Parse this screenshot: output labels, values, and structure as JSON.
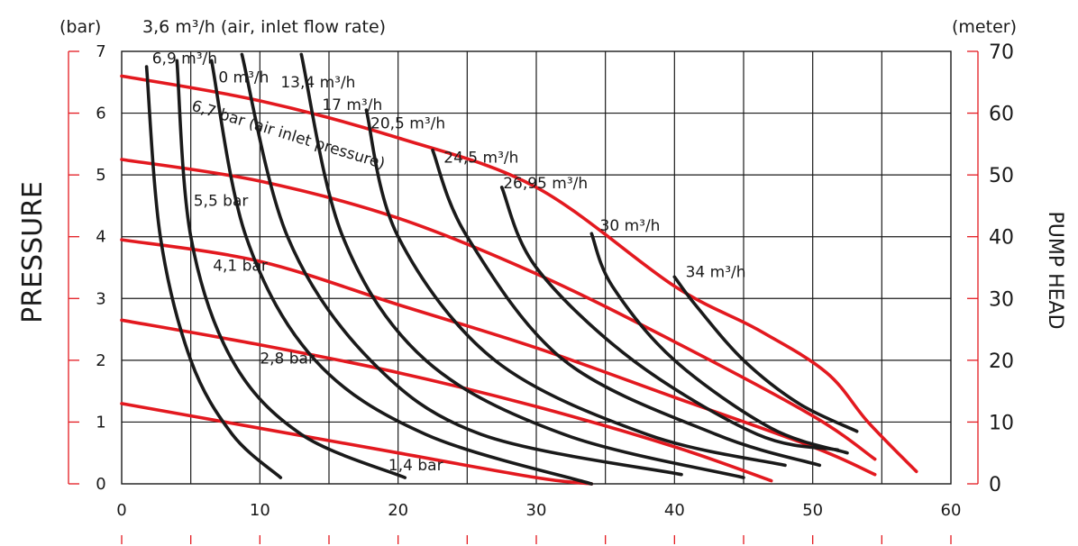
{
  "chart_data": {
    "type": "line",
    "left_axis": {
      "title": "PRESSURE",
      "unit": "(bar)",
      "range": [
        0,
        7
      ],
      "ticks": [
        "0",
        "1",
        "2",
        "3",
        "4",
        "5",
        "6",
        "7"
      ]
    },
    "right_axis": {
      "title": "PUMP HEAD",
      "unit": "(meter)",
      "range": [
        0,
        70
      ],
      "ticks": [
        "0",
        "10",
        "20",
        "30",
        "40",
        "50",
        "60",
        "70"
      ]
    },
    "x_axis": {
      "range": [
        0,
        60
      ],
      "ticks": [
        "0",
        "10",
        "20",
        "30",
        "40",
        "50",
        "60"
      ]
    },
    "grid": true,
    "top_annotation": "3,6 m³/h (air, inlet flow rate)",
    "colors": {
      "pressure_curves": "#e3191f",
      "air_flow_curves": "#1a1a1a",
      "grid": "#1a1a1a"
    },
    "pressure_series": [
      {
        "name": "6,7 bar (air inlet pressure)",
        "label_angle": 17,
        "x": [
          0,
          10,
          20,
          30,
          40,
          46,
          51,
          54,
          57.5
        ],
        "y": [
          6.6,
          6.2,
          5.6,
          4.8,
          3.2,
          2.5,
          1.8,
          1.0,
          0.2
        ]
      },
      {
        "name": "5,5 bar",
        "x": [
          0,
          10,
          20,
          30,
          40,
          50,
          54.5
        ],
        "y": [
          5.25,
          4.9,
          4.3,
          3.4,
          2.3,
          1.1,
          0.4
        ]
      },
      {
        "name": "4,1 bar",
        "x": [
          0,
          10,
          20,
          30,
          40,
          50,
          54.5
        ],
        "y": [
          3.95,
          3.6,
          2.9,
          2.2,
          1.4,
          0.6,
          0.15
        ]
      },
      {
        "name": "2,8 bar",
        "x": [
          0,
          10,
          20,
          30,
          40,
          47
        ],
        "y": [
          2.65,
          2.25,
          1.8,
          1.25,
          0.6,
          0.05
        ]
      },
      {
        "name": "1,4 bar",
        "x": [
          0,
          10,
          20,
          30,
          34
        ],
        "y": [
          1.3,
          0.9,
          0.5,
          0.1,
          0.0
        ]
      }
    ],
    "air_flow_series": [
      {
        "name": "6,9 m³/h",
        "x": [
          1.8,
          2.8,
          5,
          8,
          11.5
        ],
        "y": [
          6.75,
          4.0,
          2.0,
          0.8,
          0.1
        ]
      },
      {
        "name": "0 m³/h",
        "x": [
          4,
          5,
          8,
          13,
          20.5
        ],
        "y": [
          6.85,
          4.0,
          2.0,
          0.8,
          0.1
        ]
      },
      {
        "name": "13,4 m³/h",
        "x": [
          6.5,
          9,
          14,
          22,
          34
        ],
        "y": [
          6.85,
          4.0,
          2.0,
          0.8,
          0.0
        ]
      },
      {
        "name": "",
        "x": [
          8.7,
          12,
          18,
          26,
          40.5
        ],
        "y": [
          6.95,
          4.0,
          2.0,
          0.8,
          0.15
        ]
      },
      {
        "name": "17 m³/h",
        "x": [
          13,
          16,
          22,
          32,
          45
        ],
        "y": [
          6.95,
          4.0,
          2.0,
          0.8,
          0.1
        ]
      },
      {
        "name": "20,5 m³/h",
        "x": [
          17.7,
          20,
          27,
          38,
          48
        ],
        "y": [
          6.05,
          4.0,
          2.0,
          0.8,
          0.3
        ]
      },
      {
        "name": "24,5 m³/h",
        "x": [
          22.5,
          25,
          32,
          43,
          50.5
        ],
        "y": [
          5.4,
          4.0,
          2.0,
          0.8,
          0.3
        ]
      },
      {
        "name": "26,95 m³/h",
        "x": [
          27.5,
          30,
          37,
          46,
          51.8
        ],
        "y": [
          4.8,
          3.5,
          2.0,
          0.8,
          0.55
        ]
      },
      {
        "name": "30 m³/h",
        "x": [
          34,
          35.5,
          40,
          47,
          52.5
        ],
        "y": [
          4.05,
          3.2,
          2.0,
          0.9,
          0.5
        ]
      },
      {
        "name": "34 m³/h",
        "x": [
          40,
          41.5,
          45,
          49,
          53.2
        ],
        "y": [
          3.35,
          2.9,
          2.0,
          1.3,
          0.85
        ]
      }
    ]
  }
}
